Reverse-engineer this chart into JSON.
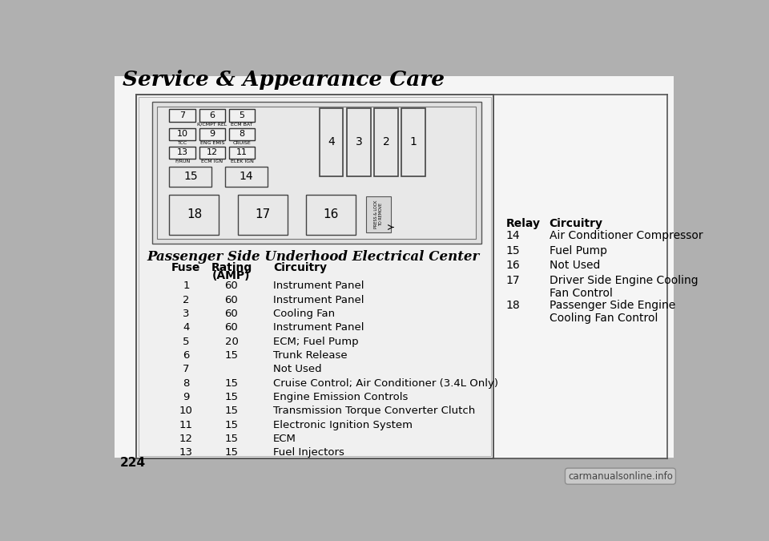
{
  "title": "Service & Appearance Care",
  "page_number": "224",
  "section_title": "Passenger Side Underhood Electrical Center",
  "fuse_data": [
    [
      "1",
      "60",
      "Instrument Panel"
    ],
    [
      "2",
      "60",
      "Instrument Panel"
    ],
    [
      "3",
      "60",
      "Cooling Fan"
    ],
    [
      "4",
      "60",
      "Instrument Panel"
    ],
    [
      "5",
      "20",
      "ECM; Fuel Pump"
    ],
    [
      "6",
      "15",
      "Trunk Release"
    ],
    [
      "7",
      "",
      "Not Used"
    ],
    [
      "8",
      "15",
      "Cruise Control; Air Conditioner (3.4L Only)"
    ],
    [
      "9",
      "15",
      "Engine Emission Controls"
    ],
    [
      "10",
      "15",
      "Transmission Torque Converter Clutch"
    ],
    [
      "11",
      "15",
      "Electronic Ignition System"
    ],
    [
      "12",
      "15",
      "ECM"
    ],
    [
      "13",
      "15",
      "Fuel Injectors"
    ]
  ],
  "relay_data": [
    [
      "14",
      "Air Conditioner Compressor"
    ],
    [
      "15",
      "Fuel Pump"
    ],
    [
      "16",
      "Not Used"
    ],
    [
      "17",
      "Driver Side Engine Cooling\nFan Control"
    ],
    [
      "18",
      "Passenger Side Engine\nCooling Fan Control"
    ]
  ],
  "bg_outer": "#b0b0b0",
  "bg_inner": "#f0f0f0",
  "bg_diagram": "#e8e8e8",
  "fuse_row1_labels": [
    "7",
    "6",
    "5"
  ],
  "fuse_row1_sub": [
    "",
    "R/CMPT REL",
    "ECM BAT"
  ],
  "fuse_row2_labels": [
    "10",
    "9",
    "8"
  ],
  "fuse_row2_sub": [
    "TCC",
    "ENG EMIS",
    "CRUISE"
  ],
  "fuse_row3_labels": [
    "13",
    "12",
    "11"
  ],
  "fuse_row3_sub": [
    "F/RUN",
    "ECM IGN",
    "ELEK IGN"
  ],
  "large_fuse_labels": [
    "4",
    "3",
    "2",
    "1"
  ],
  "relay_mid_labels": [
    "15",
    "14"
  ],
  "relay_bot_labels": [
    "18",
    "17",
    "16"
  ],
  "watermark": "carmanualsonline.info"
}
